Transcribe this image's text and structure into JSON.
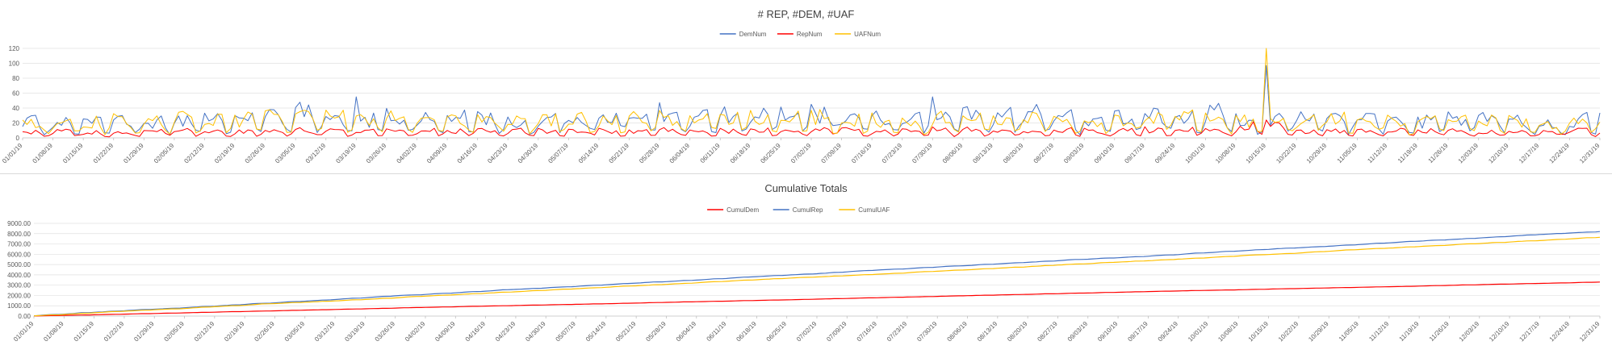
{
  "chart_data": [
    {
      "type": "line",
      "title": "# REP, #DEM, #UAF",
      "ylim": [
        0,
        120
      ],
      "yticks": [
        0,
        20,
        40,
        60,
        80,
        100,
        120
      ],
      "ytick_labels": [
        "0",
        "20",
        "40",
        "60",
        "80",
        "100",
        "120"
      ],
      "grid": true,
      "legend_placement": "top",
      "x_start": "01/01/19",
      "x_end": "12/31/19",
      "x_tick_labels": [
        "01/01/19",
        "01/08/19",
        "01/15/19",
        "01/22/19",
        "01/29/19",
        "02/05/19",
        "02/12/19",
        "02/19/19",
        "02/26/19",
        "03/05/19",
        "03/12/19",
        "03/19/19",
        "03/26/19",
        "04/02/19",
        "04/09/19",
        "04/16/19",
        "04/23/19",
        "04/30/19",
        "05/07/19",
        "05/14/19",
        "05/21/19",
        "05/28/19",
        "06/04/19",
        "06/11/19",
        "06/18/19",
        "06/25/19",
        "07/02/19",
        "07/09/19",
        "07/16/19",
        "07/23/19",
        "07/30/19",
        "08/06/19",
        "08/13/19",
        "08/20/19",
        "08/27/19",
        "09/03/19",
        "09/10/19",
        "09/17/19",
        "09/24/19",
        "10/01/19",
        "10/08/19",
        "10/15/19",
        "10/22/19",
        "10/29/19",
        "11/05/19",
        "11/12/19",
        "11/19/19",
        "11/26/19",
        "12/03/19",
        "12/10/19",
        "12/17/19",
        "12/24/19",
        "12/31/19"
      ],
      "series_weekly": [
        {
          "name": "DemNum",
          "color": "#4472c4",
          "values": [
            25,
            22,
            20,
            24,
            22,
            25,
            30,
            24,
            28,
            38,
            30,
            20,
            32,
            28,
            25,
            32,
            22,
            22,
            35,
            26,
            35,
            38,
            25,
            35,
            35,
            32,
            35,
            28,
            32,
            26,
            30,
            36,
            30,
            35,
            36,
            25,
            30,
            30,
            35,
            35,
            38,
            95,
            28,
            32,
            28,
            25,
            22,
            28,
            30,
            28,
            22,
            22,
            30
          ]
        },
        {
          "name": "RepNum",
          "color": "#ff0000",
          "values": [
            8,
            10,
            8,
            7,
            8,
            10,
            10,
            8,
            10,
            12,
            10,
            8,
            10,
            10,
            10,
            12,
            10,
            10,
            12,
            10,
            10,
            12,
            10,
            10,
            12,
            10,
            10,
            12,
            10,
            10,
            12,
            12,
            10,
            10,
            12,
            10,
            10,
            12,
            10,
            12,
            12,
            20,
            10,
            10,
            10,
            10,
            10,
            10,
            10,
            10,
            8,
            10,
            10
          ]
        },
        {
          "name": "UAFNum",
          "color": "#ffc000",
          "values": [
            22,
            20,
            22,
            25,
            20,
            28,
            26,
            25,
            30,
            30,
            32,
            26,
            28,
            30,
            24,
            28,
            30,
            26,
            28,
            25,
            30,
            32,
            28,
            28,
            30,
            26,
            30,
            28,
            26,
            22,
            28,
            30,
            28,
            28,
            30,
            22,
            26,
            30,
            30,
            28,
            35,
            110,
            24,
            30,
            26,
            25,
            22,
            25,
            26,
            25,
            22,
            20,
            25
          ]
        }
      ],
      "peaks": [
        {
          "date": "03/19/19",
          "series": "DemNum",
          "value": 55
        },
        {
          "date": "07/30/19",
          "series": "DemNum",
          "value": 55
        },
        {
          "date": "10/15/19",
          "series": "UAFNum",
          "value": 120
        },
        {
          "date": "10/15/19",
          "series": "DemNum",
          "value": 97
        }
      ]
    },
    {
      "type": "line",
      "title": "Cumulative Totals",
      "ylim": [
        0,
        9000
      ],
      "yticks": [
        0,
        1000,
        2000,
        3000,
        4000,
        5000,
        6000,
        7000,
        8000,
        9000
      ],
      "ytick_labels": [
        "0.00",
        "1000.00",
        "2000.00",
        "3000.00",
        "4000.00",
        "5000.00",
        "6000.00",
        "7000.00",
        "8000.00",
        "9000.00"
      ],
      "grid": true,
      "legend_placement": "top",
      "x_start": "01/01/19",
      "x_end": "12/31/19",
      "x_tick_labels": [
        "01/01/19",
        "01/08/19",
        "01/15/19",
        "01/22/19",
        "01/29/19",
        "02/05/19",
        "02/12/19",
        "02/19/19",
        "02/26/19",
        "03/05/19",
        "03/12/19",
        "03/19/19",
        "03/26/19",
        "04/02/19",
        "04/09/19",
        "04/16/19",
        "04/23/19",
        "04/30/19",
        "05/07/19",
        "05/14/19",
        "05/21/19",
        "05/28/19",
        "06/04/19",
        "06/11/19",
        "06/18/19",
        "06/25/19",
        "07/02/19",
        "07/09/19",
        "07/16/19",
        "07/23/19",
        "07/30/19",
        "08/06/19",
        "08/13/19",
        "08/20/19",
        "08/27/19",
        "09/03/19",
        "09/10/19",
        "09/17/19",
        "09/24/19",
        "10/01/19",
        "10/08/19",
        "10/15/19",
        "10/22/19",
        "10/29/19",
        "11/05/19",
        "11/12/19",
        "11/19/19",
        "11/26/19",
        "12/03/19",
        "12/10/19",
        "12/17/19",
        "12/24/19",
        "12/31/19"
      ],
      "series": [
        {
          "name": "CumulDem",
          "color": "#ff0000",
          "end_value": 3300
        },
        {
          "name": "CumulRep",
          "color": "#4472c4",
          "end_value": 8200
        },
        {
          "name": "CumulUAF",
          "color": "#ffc000",
          "end_value": 7650
        }
      ]
    }
  ]
}
